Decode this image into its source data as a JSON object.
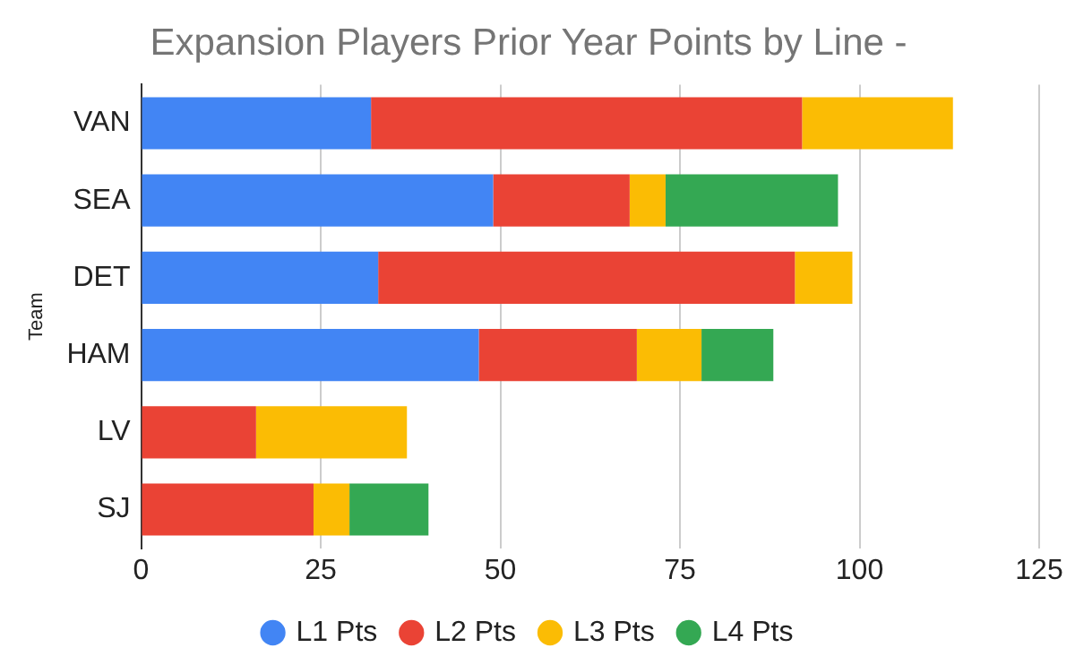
{
  "chart_data": {
    "type": "bar",
    "orientation": "horizontal",
    "stacked": true,
    "title": "Expansion Players Prior Year Points by Line -",
    "ylabel": "Team",
    "categories": [
      "VAN",
      "SEA",
      "DET",
      "HAM",
      "LV",
      "SJ"
    ],
    "series": [
      {
        "name": "L1 Pts",
        "color": "#4285f4",
        "values": [
          32,
          49,
          33,
          47,
          null,
          null
        ]
      },
      {
        "name": "L2 Pts",
        "color": "#ea4335",
        "values": [
          60,
          19,
          58,
          22,
          16,
          24
        ]
      },
      {
        "name": "L3 Pts",
        "color": "#fbbc04",
        "values": [
          21,
          5,
          8,
          9,
          21,
          5
        ]
      },
      {
        "name": "L4 Pts",
        "color": "#34a853",
        "values": [
          null,
          24,
          null,
          10,
          null,
          11
        ]
      }
    ],
    "xlim": [
      0,
      125
    ],
    "xticks": [
      0,
      25,
      50,
      75,
      100,
      125
    ],
    "grid": "x",
    "legend": "bottom"
  }
}
